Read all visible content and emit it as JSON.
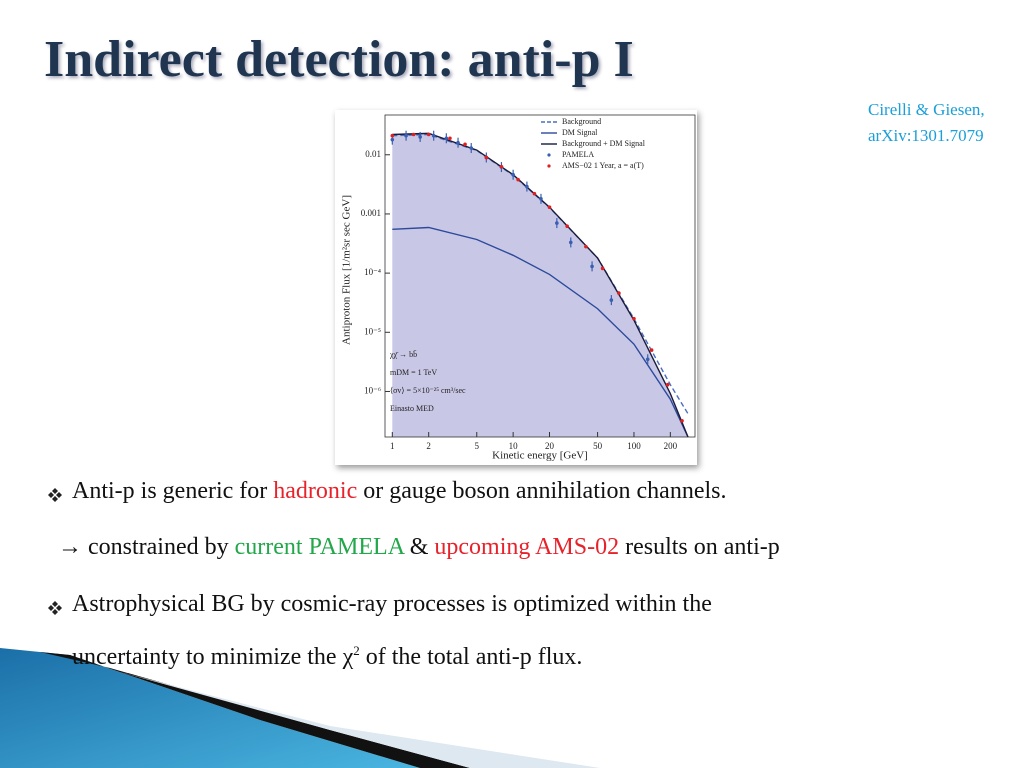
{
  "title": "Indirect detection: anti-p I",
  "citation": [
    "Cirelli & Giesen,",
    "arXiv:1301.7079"
  ],
  "chart_data": {
    "type": "line",
    "xlabel": "Kinetic energy [GeV]",
    "ylabel": "Antiproton Flux [1/m²sr sec GeV]",
    "xscale": "log",
    "yscale": "log",
    "xlim": [
      0.87,
      320
    ],
    "ylim": [
      1.7e-07,
      0.047
    ],
    "xticks": [
      1,
      2,
      5,
      10,
      20,
      50,
      100,
      200
    ],
    "yticks": [
      0.01,
      0.001,
      {
        "value": 0.0001,
        "label": "10⁻⁴"
      },
      {
        "value": 1e-05,
        "label": "10⁻⁵"
      },
      {
        "value": 1e-06,
        "label": "10⁻⁶"
      }
    ],
    "fill": "#c9c7e6",
    "annotations": [
      "χχ̄ → bb̄",
      "mDM = 1 TeV",
      "⟨σv⟩ = 5×10⁻²⁵ cm³/sec",
      "Einasto MED"
    ],
    "series": [
      {
        "name": "Background",
        "color": "#4a6fc0",
        "style": "dashed",
        "x": [
          1,
          2,
          5,
          10,
          20,
          50,
          100,
          200,
          280
        ],
        "values": [
          0.021,
          0.022,
          0.0118,
          0.0045,
          0.00128,
          0.00018,
          1.7e-05,
          1.3e-06,
          4.2e-07
        ]
      },
      {
        "name": "DM Signal",
        "color": "#2c4a9c",
        "style": "solid",
        "x": [
          1,
          2,
          5,
          10,
          20,
          50,
          100,
          200,
          280
        ],
        "values": [
          0.00055,
          0.00059,
          0.00037,
          0.0002,
          9.5e-05,
          2.5e-05,
          6.3e-06,
          7.4e-07,
          1.7e-07
        ]
      },
      {
        "name": "Background + DM Signal",
        "color": "#1a1a3a",
        "style": "solid",
        "x": [
          1,
          2,
          5,
          10,
          20,
          50,
          100,
          200,
          280
        ],
        "values": [
          0.022,
          0.023,
          0.012,
          0.0046,
          0.0013,
          0.00018,
          1.6e-05,
          9.2e-07,
          1.7e-07
        ]
      },
      {
        "name": "PAMELA",
        "color": "#3a5fb0",
        "style": "points",
        "x": [
          1,
          1.3,
          1.7,
          2.2,
          2.8,
          3.5,
          4.5,
          6,
          8,
          10,
          13,
          17,
          23,
          30,
          45,
          65,
          130
        ],
        "values": [
          0.018,
          0.021,
          0.02,
          0.021,
          0.019,
          0.016,
          0.013,
          0.009,
          0.0062,
          0.0046,
          0.0029,
          0.0018,
          0.0007,
          0.00033,
          0.00013,
          3.5e-05,
          3.5e-06
        ]
      },
      {
        "name": "AMS−02 1 Year, a = a(T)",
        "color": "#e02020",
        "style": "points",
        "x": [
          1,
          1.5,
          2,
          3,
          4,
          6,
          8,
          11,
          15,
          20,
          28,
          40,
          55,
          75,
          100,
          140,
          190,
          250
        ],
        "values": [
          0.021,
          0.022,
          0.022,
          0.019,
          0.015,
          0.009,
          0.0063,
          0.0038,
          0.0022,
          0.0013,
          0.00062,
          0.00028,
          0.00012,
          4.6e-05,
          1.7e-05,
          5e-06,
          1.3e-06,
          3.2e-07
        ]
      }
    ]
  },
  "bullets": [
    {
      "bullet": true,
      "segments": [
        {
          "text": "Anti-p is generic for "
        },
        {
          "text": "hadronic",
          "color": "#e8222a"
        },
        {
          "text": " or gauge boson annihilation channels."
        }
      ]
    },
    {
      "bullet": false,
      "segments": [
        {
          "text": "→ constrained by "
        },
        {
          "text": "current PAMELA",
          "color": "#22a84a"
        },
        {
          "text": " & "
        },
        {
          "text": "upcoming AMS-02",
          "color": "#e8222a"
        },
        {
          "text": " results on anti-p"
        }
      ]
    },
    {
      "bullet": true,
      "segments": [
        {
          "text": "Astrophysical BG by cosmic-ray processes is optimized within the"
        }
      ]
    },
    {
      "bullet": false,
      "segments": [
        {
          "text": "uncertainty to minimize the χ"
        },
        {
          "text": "2",
          "sup": true
        },
        {
          "text": " of the total anti-p flux."
        }
      ]
    }
  ]
}
